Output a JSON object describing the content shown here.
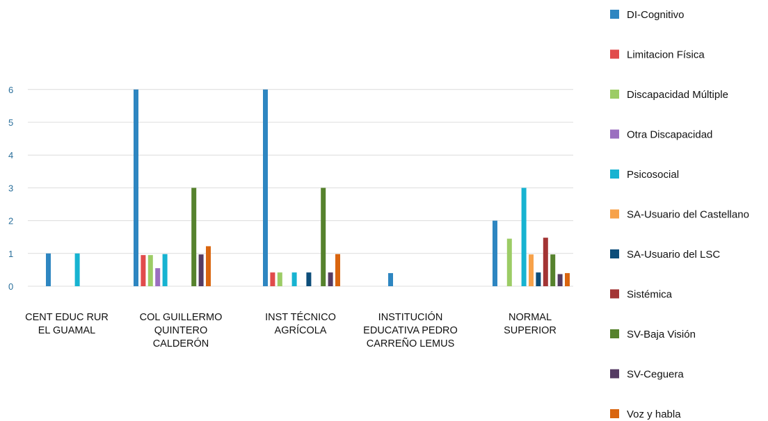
{
  "chart_data": {
    "type": "bar",
    "categories": [
      [
        "CENT EDUC RUR",
        "EL GUAMAL"
      ],
      [
        "COL GUILLERMO",
        "QUINTERO",
        "CALDERÓN"
      ],
      [
        "INST TÉCNICO",
        "AGRÍCOLA"
      ],
      [
        "INSTITUCIÓN",
        "EDUCATIVA PEDRO",
        "CARREÑO LEMUS"
      ],
      [
        "NORMAL",
        "SUPERIOR"
      ]
    ],
    "y_ticks": [
      "0",
      "1",
      "2",
      "3",
      "4",
      "5",
      "6"
    ],
    "ylim": [
      0,
      6
    ],
    "grid": true,
    "legend_position": "right",
    "series": [
      {
        "name": "DI-Cognitivo",
        "color": "#2e86c1",
        "values": [
          1,
          6,
          6,
          0.4,
          2
        ]
      },
      {
        "name": "Limitacion Física",
        "color": "#e14b4b",
        "values": [
          0,
          0.95,
          0.42,
          0,
          0
        ]
      },
      {
        "name": "Discapacidad Múltiple",
        "color": "#9ccc65",
        "values": [
          0,
          0.95,
          0.42,
          0,
          1.45
        ]
      },
      {
        "name": "Otra Discapacidad",
        "color": "#9b6fc0",
        "values": [
          0,
          0.55,
          0,
          0,
          0
        ]
      },
      {
        "name": "Psicosocial",
        "color": "#17b3d1",
        "values": [
          1,
          0.98,
          0.42,
          0,
          3
        ]
      },
      {
        "name": "SA-Usuario del Castellano",
        "color": "#f7a24a",
        "values": [
          0,
          0,
          0,
          0,
          0.97
        ]
      },
      {
        "name": "SA-Usuario del LSC",
        "color": "#0d4e7a",
        "values": [
          0,
          0,
          0.42,
          0,
          0.42
        ]
      },
      {
        "name": "Sistémica",
        "color": "#a33434",
        "values": [
          0,
          0,
          0,
          0,
          1.48
        ]
      },
      {
        "name": "SV-Baja Visión",
        "color": "#56822d",
        "values": [
          0,
          3,
          3,
          0,
          0.97
        ]
      },
      {
        "name": "SV-Ceguera",
        "color": "#553b63",
        "values": [
          0,
          0.97,
          0.42,
          0,
          0.37
        ]
      },
      {
        "name": "Voz y habla",
        "color": "#d9650f",
        "values": [
          0,
          1.22,
          0.98,
          0,
          0.4
        ]
      }
    ]
  }
}
